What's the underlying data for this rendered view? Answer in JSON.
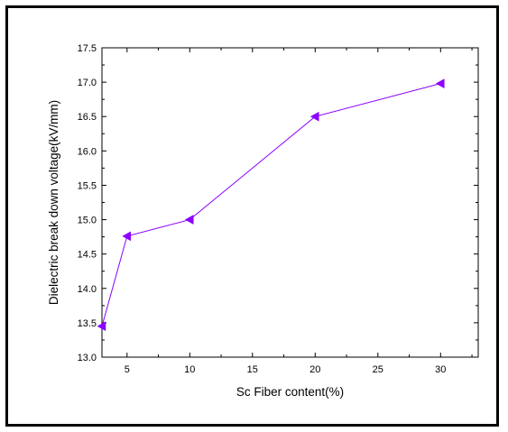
{
  "chart_data": {
    "type": "line",
    "xlabel": "Sc Fiber content(%)",
    "ylabel": "Dielectric break down voltage(kV/mm)",
    "xlim": [
      3,
      33
    ],
    "ylim": [
      13.0,
      17.5
    ],
    "xticks": [
      5,
      10,
      15,
      20,
      25,
      30
    ],
    "xtick_labels": [
      "5",
      "10",
      "15",
      "20",
      "25",
      "30"
    ],
    "yticks": [
      13.0,
      13.5,
      14.0,
      14.5,
      15.0,
      15.5,
      16.0,
      16.5,
      17.0,
      17.5
    ],
    "ytick_labels": [
      "13.0",
      "13.5",
      "14.0",
      "14.5",
      "15.0",
      "15.5",
      "16.0",
      "16.5",
      "17.0",
      "17.5"
    ],
    "marker": "left-triangle",
    "series": [
      {
        "x": [
          3,
          5,
          10,
          20,
          30
        ],
        "y": [
          13.45,
          14.76,
          15.0,
          16.5,
          16.98
        ],
        "color": "#8b00ff"
      }
    ],
    "grid": false,
    "legend": "none"
  }
}
